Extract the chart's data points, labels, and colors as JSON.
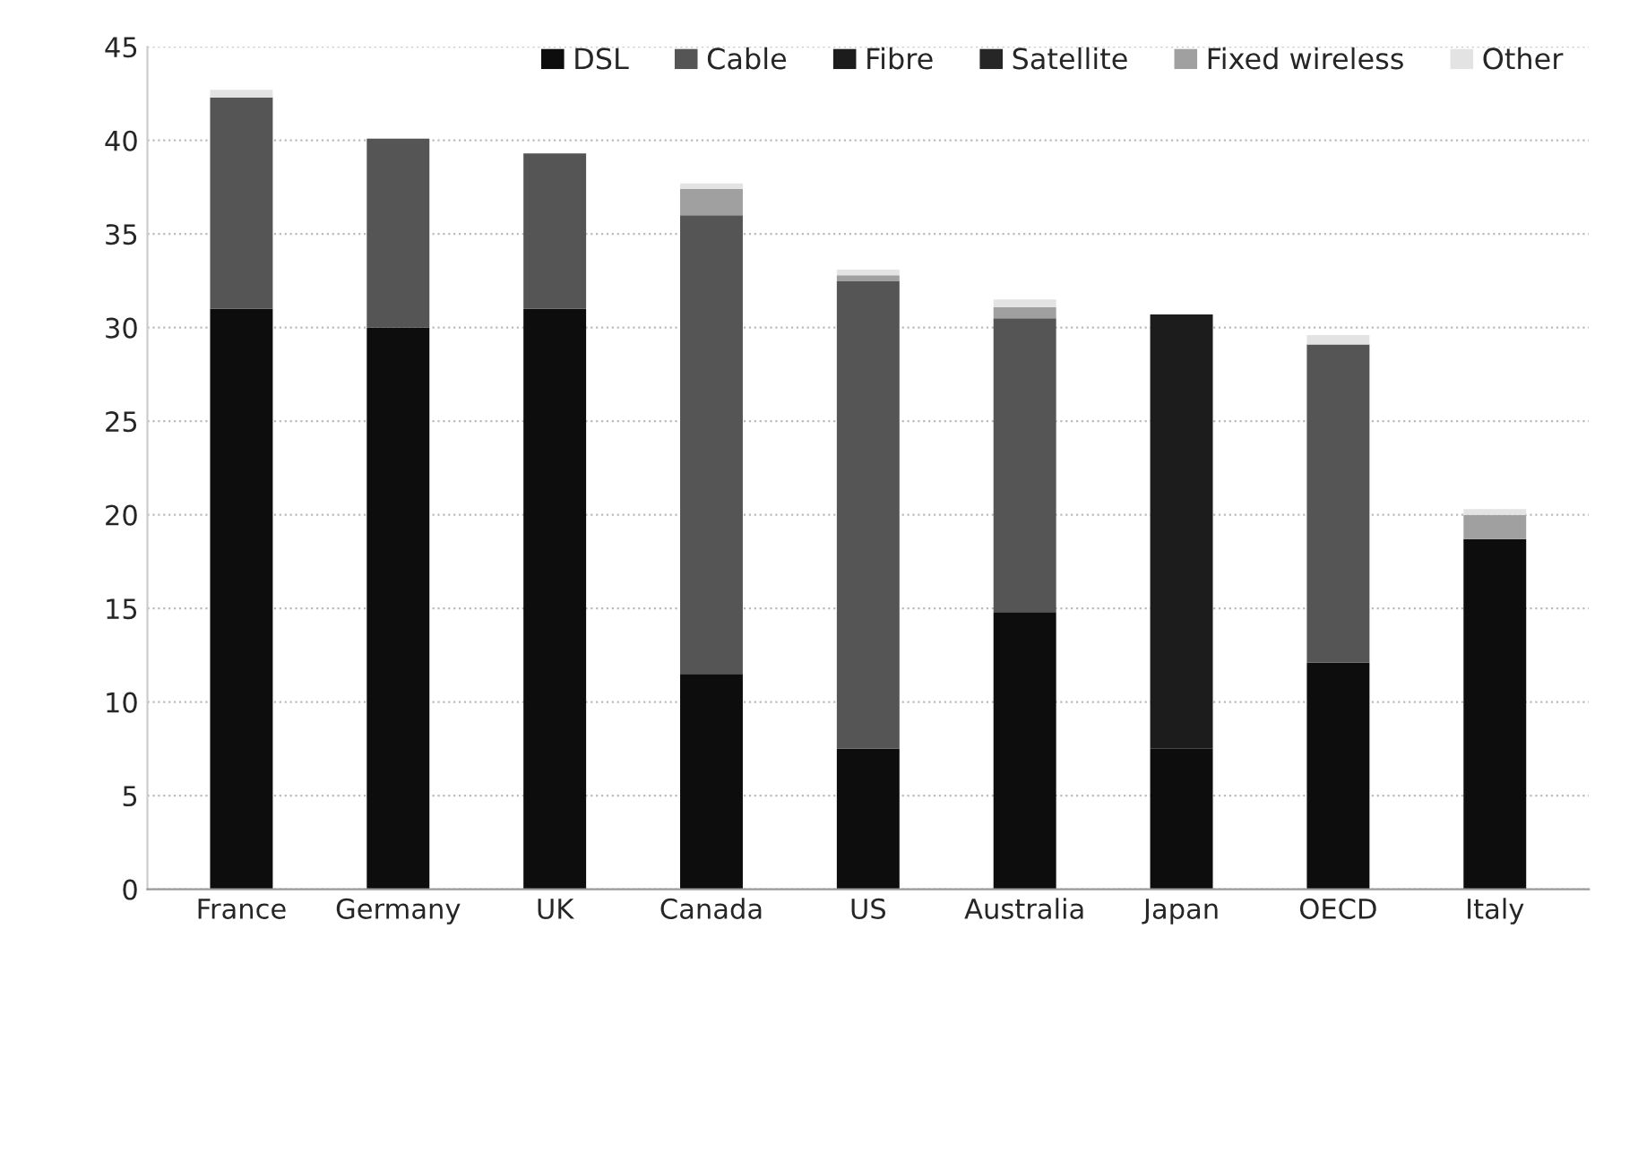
{
  "chart_data": {
    "type": "bar",
    "stacked": true,
    "categories": [
      "France",
      "Germany",
      "UK",
      "Canada",
      "US",
      "Australia",
      "Japan",
      "OECD",
      "Italy"
    ],
    "series": [
      {
        "name": "DSL",
        "color": "#0d0d0d",
        "values": [
          31.0,
          30.0,
          31.0,
          11.5,
          7.5,
          14.8,
          7.5,
          12.1,
          18.7
        ]
      },
      {
        "name": "Cable",
        "color": "#555555",
        "values": [
          11.3,
          10.1,
          8.3,
          24.5,
          25.0,
          15.7,
          0,
          17.0,
          0
        ]
      },
      {
        "name": "Fibre",
        "color": "#1c1c1c",
        "values": [
          0,
          0,
          0,
          0,
          0,
          0,
          23.2,
          0,
          0
        ]
      },
      {
        "name": "Satellite",
        "color": "#262626",
        "values": [
          0,
          0,
          0,
          0,
          0,
          0,
          0,
          0,
          0
        ]
      },
      {
        "name": "Fixed wireless",
        "color": "#a0a0a0",
        "values": [
          0,
          0,
          0,
          1.4,
          0.3,
          0.6,
          0,
          0,
          1.3
        ]
      },
      {
        "name": "Other",
        "color": "#e3e3e3",
        "values": [
          0.4,
          0,
          0,
          0.3,
          0.3,
          0.4,
          0,
          0.5,
          0.3
        ]
      }
    ],
    "ylim": [
      0,
      45
    ],
    "yticks": [
      0,
      5,
      10,
      15,
      20,
      25,
      30,
      35,
      40,
      45
    ],
    "grid": "y",
    "legend": "top right"
  }
}
